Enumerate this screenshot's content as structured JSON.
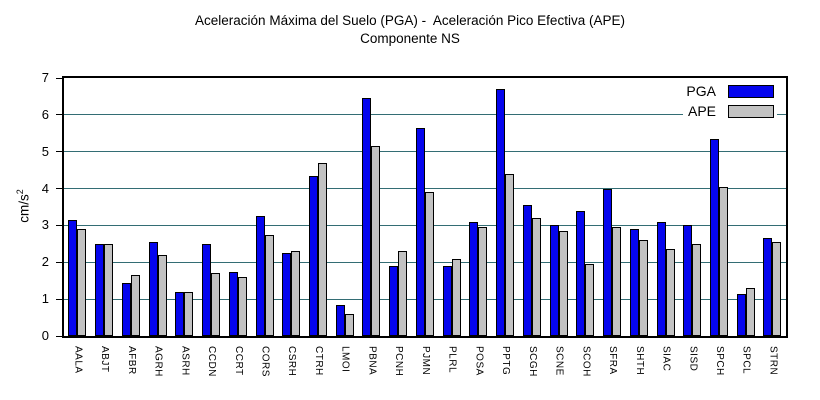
{
  "title": {
    "line1": "Aceleración Máxima del Suelo (PGA) -  Aceleración Pico Efectiva (APE)",
    "line2": "Componente NS"
  },
  "y_axis": {
    "unit_base": "cm/s",
    "unit_exponent": "2",
    "ticks": [
      0,
      1,
      2,
      3,
      4,
      5,
      6,
      7
    ]
  },
  "legend": [
    {
      "label": "PGA",
      "color": "#0505ee"
    },
    {
      "label": "APE",
      "color": "#c2c2c2"
    }
  ],
  "colors": {
    "grid": "#336d74",
    "axis": "#000000",
    "bar_outline": "#000000",
    "pga": "#0505ee",
    "ape": "#c2c2c2"
  },
  "chart_data": {
    "type": "bar",
    "title": "Aceleración Máxima del Suelo (PGA) -  Aceleración Pico Efectiva (APE)",
    "subtitle": "Componente NS",
    "ylabel": "cm/s2",
    "ylim": [
      0,
      7
    ],
    "grid": "horizontal",
    "legend_position": "top-right-inside",
    "categories": [
      "AALA",
      "ABJT",
      "AFBR",
      "AGRH",
      "ASRH",
      "CCDN",
      "CCRT",
      "CORS",
      "CSRH",
      "CTRH",
      "LMOI",
      "PBNA",
      "PCNH",
      "PJMN",
      "PLRL",
      "POSA",
      "PPTG",
      "SCGH",
      "SCNE",
      "SCOH",
      "SFRA",
      "SHTH",
      "SIAC",
      "SISD",
      "SPCH",
      "SPCL",
      "STRN"
    ],
    "series": [
      {
        "name": "PGA",
        "color": "#0505ee",
        "values": [
          3.15,
          2.5,
          1.45,
          2.55,
          1.2,
          2.5,
          1.75,
          3.25,
          2.25,
          4.35,
          0.85,
          6.45,
          1.9,
          5.65,
          1.9,
          3.1,
          6.7,
          3.55,
          3.0,
          3.4,
          4.0,
          2.9,
          3.1,
          3.0,
          5.35,
          1.15,
          2.65
        ]
      },
      {
        "name": "APE",
        "color": "#c2c2c2",
        "values": [
          2.9,
          2.5,
          1.65,
          2.2,
          1.2,
          1.7,
          1.6,
          2.75,
          2.3,
          4.7,
          0.6,
          5.15,
          2.3,
          3.9,
          2.1,
          2.95,
          4.4,
          3.2,
          2.85,
          1.95,
          2.95,
          2.6,
          2.35,
          2.5,
          4.05,
          1.3,
          2.55
        ]
      }
    ]
  }
}
